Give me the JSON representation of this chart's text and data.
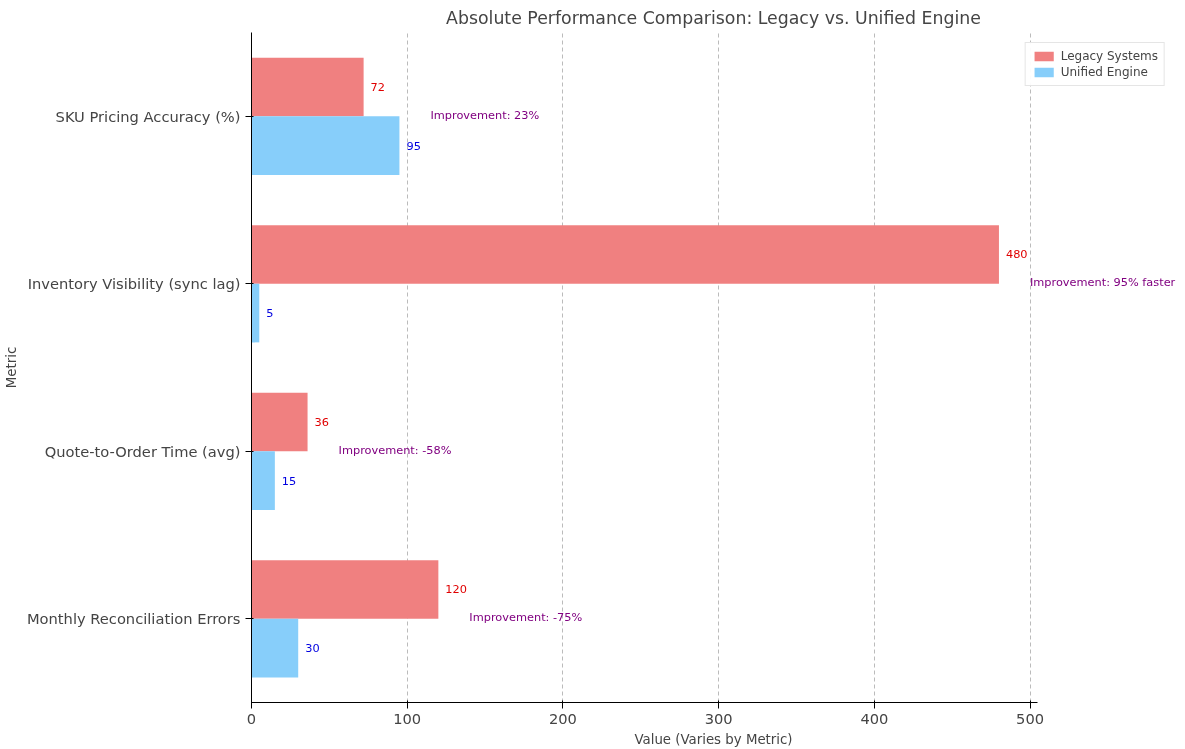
{
  "chart_data": {
    "type": "bar",
    "orientation": "horizontal",
    "title": "Absolute Performance Comparison: Legacy vs. Unified Engine",
    "xlabel": "Value (Varies by Metric)",
    "ylabel": "Metric",
    "categories": [
      "SKU Pricing Accuracy (%)",
      "Inventory Visibility (sync lag)",
      "Quote-to-Order Time (avg)",
      "Monthly Reconciliation Errors"
    ],
    "series": [
      {
        "name": "Legacy Systems",
        "color": "#f08080",
        "values": [
          72,
          480,
          36,
          120
        ]
      },
      {
        "name": "Unified Engine",
        "color": "#87cefa",
        "values": [
          95,
          5,
          15,
          30
        ]
      }
    ],
    "xlim": [
      0,
      505
    ],
    "xticks": [
      0,
      100,
      200,
      300,
      400,
      500
    ],
    "grid": "x",
    "legend": "top right",
    "data_labels": true,
    "annotations": [
      "Improvement: 23%",
      "Improvement: 95% faster",
      "Improvement: -58%",
      "Improvement: -75%"
    ]
  }
}
